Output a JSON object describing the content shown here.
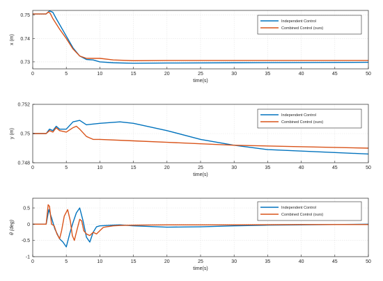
{
  "chart_data": [
    {
      "type": "line",
      "title": "",
      "xlabel": "time(s)",
      "ylabel": "x (m)",
      "xlim": [
        0,
        50
      ],
      "ylim": [
        0.727,
        0.752
      ],
      "xticks": [
        0,
        5,
        10,
        15,
        20,
        25,
        30,
        35,
        40,
        45,
        50
      ],
      "yticks": [
        0.73,
        0.74,
        0.75
      ],
      "ytick_labels": [
        "0.73",
        "0.74",
        "0.75"
      ],
      "grid": true,
      "legend_position": "top-right",
      "series": [
        {
          "name": "Independent Control",
          "color": "#0072BD",
          "points": [
            [
              0,
              0.7505
            ],
            [
              1,
              0.7505
            ],
            [
              2,
              0.7505
            ],
            [
              2.5,
              0.7518
            ],
            [
              3,
              0.7512
            ],
            [
              3.5,
              0.7485
            ],
            [
              4,
              0.746
            ],
            [
              5,
              0.741
            ],
            [
              6,
              0.736
            ],
            [
              7,
              0.7325
            ],
            [
              8,
              0.731
            ],
            [
              9,
              0.7308
            ],
            [
              10,
              0.73
            ],
            [
              12,
              0.7296
            ],
            [
              15,
              0.7294
            ],
            [
              20,
              0.7295
            ],
            [
              30,
              0.7296
            ],
            [
              40,
              0.7297
            ],
            [
              50,
              0.7298
            ]
          ]
        },
        {
          "name": "Combined Control (ours)",
          "color": "#D95319",
          "points": [
            [
              0,
              0.7505
            ],
            [
              1,
              0.7505
            ],
            [
              2,
              0.7505
            ],
            [
              2.3,
              0.7513
            ],
            [
              2.6,
              0.7508
            ],
            [
              3,
              0.7485
            ],
            [
              4,
              0.744
            ],
            [
              5,
              0.74
            ],
            [
              6,
              0.7355
            ],
            [
              7,
              0.7325
            ],
            [
              8,
              0.7315
            ],
            [
              9,
              0.7315
            ],
            [
              10,
              0.7315
            ],
            [
              12,
              0.7308
            ],
            [
              15,
              0.7305
            ],
            [
              20,
              0.7306
            ],
            [
              30,
              0.7306
            ],
            [
              40,
              0.7306
            ],
            [
              50,
              0.7306
            ]
          ]
        }
      ]
    },
    {
      "type": "line",
      "title": "",
      "xlabel": "time(s)",
      "ylabel": "y (m)",
      "xlim": [
        0,
        50
      ],
      "ylim": [
        0.748,
        0.752
      ],
      "xticks": [
        0,
        5,
        10,
        15,
        20,
        25,
        30,
        35,
        40,
        45,
        50
      ],
      "yticks": [
        0.748,
        0.75,
        0.752
      ],
      "ytick_labels": [
        "0.748",
        "0.75",
        "0.752"
      ],
      "grid": true,
      "legend_position": "top-right",
      "series": [
        {
          "name": "Independent Control",
          "color": "#0072BD",
          "points": [
            [
              0,
              0.75
            ],
            [
              2,
              0.75
            ],
            [
              2.5,
              0.7503
            ],
            [
              3,
              0.7502
            ],
            [
              3.5,
              0.7505
            ],
            [
              4,
              0.7503
            ],
            [
              5,
              0.7503
            ],
            [
              6,
              0.7508
            ],
            [
              7,
              0.7509
            ],
            [
              8,
              0.7506
            ],
            [
              10,
              0.7507
            ],
            [
              13,
              0.7508
            ],
            [
              15,
              0.7507
            ],
            [
              20,
              0.7502
            ],
            [
              25,
              0.7496
            ],
            [
              30,
              0.7492
            ],
            [
              35,
              0.7489
            ],
            [
              40,
              0.7488
            ],
            [
              45,
              0.7487
            ],
            [
              50,
              0.7486
            ]
          ]
        },
        {
          "name": "Combined Control (ours)",
          "color": "#D95319",
          "points": [
            [
              0,
              0.75
            ],
            [
              2,
              0.75
            ],
            [
              2.5,
              0.7502
            ],
            [
              3,
              0.7501
            ],
            [
              3.5,
              0.7504
            ],
            [
              4,
              0.7502
            ],
            [
              5,
              0.7501
            ],
            [
              6,
              0.7504
            ],
            [
              6.5,
              0.7505
            ],
            [
              7,
              0.7503
            ],
            [
              8,
              0.7498
            ],
            [
              9,
              0.7496
            ],
            [
              10,
              0.7496
            ],
            [
              15,
              0.7495
            ],
            [
              20,
              0.7494
            ],
            [
              30,
              0.7492
            ],
            [
              40,
              0.7491
            ],
            [
              50,
              0.749
            ]
          ]
        }
      ]
    },
    {
      "type": "line",
      "title": "",
      "xlabel": "time(s)",
      "ylabel": "θ (deg)",
      "xlim": [
        0,
        50
      ],
      "ylim": [
        -1,
        0.8
      ],
      "xticks": [
        0,
        5,
        10,
        15,
        20,
        25,
        30,
        35,
        40,
        45,
        50
      ],
      "yticks": [
        -1,
        -0.5,
        0,
        0.5
      ],
      "ytick_labels": [
        "-1",
        "-0.5",
        "0",
        "0.5"
      ],
      "grid": true,
      "legend_position": "top-right",
      "series": [
        {
          "name": "Independent Control",
          "color": "#0072BD",
          "points": [
            [
              0,
              0
            ],
            [
              2,
              0
            ],
            [
              2.4,
              0.45
            ],
            [
              2.8,
              0.2
            ],
            [
              3.3,
              -0.15
            ],
            [
              4,
              -0.45
            ],
            [
              4.5,
              -0.55
            ],
            [
              5,
              -0.7
            ],
            [
              5.5,
              -0.3
            ],
            [
              6,
              0.05
            ],
            [
              6.5,
              0.35
            ],
            [
              7,
              0.5
            ],
            [
              7.5,
              0.1
            ],
            [
              8,
              -0.4
            ],
            [
              8.5,
              -0.55
            ],
            [
              9,
              -0.25
            ],
            [
              9.5,
              -0.08
            ],
            [
              10,
              -0.05
            ],
            [
              11,
              -0.04
            ],
            [
              12,
              -0.03
            ],
            [
              13,
              -0.02
            ],
            [
              15,
              -0.05
            ],
            [
              20,
              -0.09
            ],
            [
              25,
              -0.08
            ],
            [
              30,
              -0.05
            ],
            [
              35,
              -0.03
            ],
            [
              40,
              -0.02
            ],
            [
              45,
              -0.01
            ],
            [
              50,
              0
            ]
          ]
        },
        {
          "name": "Combined Control (ours)",
          "color": "#D95319",
          "points": [
            [
              0,
              0
            ],
            [
              2,
              0
            ],
            [
              2.3,
              0.6
            ],
            [
              2.5,
              0.55
            ],
            [
              2.8,
              0
            ],
            [
              3.2,
              -0.05
            ],
            [
              3.6,
              -0.3
            ],
            [
              4,
              -0.45
            ],
            [
              4.3,
              -0.2
            ],
            [
              4.7,
              0.25
            ],
            [
              5.2,
              0.45
            ],
            [
              5.6,
              0.1
            ],
            [
              5.9,
              -0.35
            ],
            [
              6.2,
              -0.5
            ],
            [
              6.5,
              -0.25
            ],
            [
              7,
              0.15
            ],
            [
              7.3,
              0.1
            ],
            [
              7.6,
              -0.2
            ],
            [
              8,
              -0.3
            ],
            [
              8.5,
              -0.35
            ],
            [
              9,
              -0.25
            ],
            [
              9.5,
              -0.3
            ],
            [
              10,
              -0.2
            ],
            [
              10.5,
              -0.1
            ],
            [
              11,
              -0.08
            ],
            [
              12,
              -0.05
            ],
            [
              13,
              -0.04
            ],
            [
              15,
              -0.03
            ],
            [
              20,
              -0.02
            ],
            [
              30,
              -0.02
            ],
            [
              40,
              -0.01
            ],
            [
              50,
              -0.01
            ]
          ]
        }
      ]
    }
  ]
}
